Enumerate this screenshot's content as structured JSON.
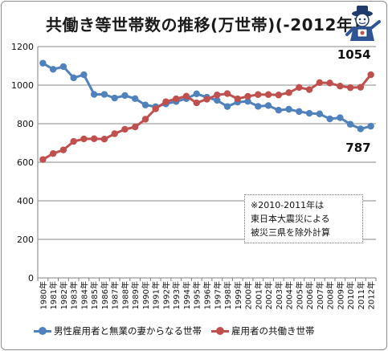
{
  "title": "共働き等世帯数の推移(万世帯)(-2012年)",
  "note_lines": [
    "※2010-2011年は",
    "東日本大震災による",
    "被災三県を除外計算"
  ],
  "chart_data": {
    "type": "line",
    "ylim": [
      0,
      1200
    ],
    "yticks": [
      0,
      200,
      400,
      600,
      800,
      1000,
      1200
    ],
    "ytick_labels": [
      "0",
      "200",
      "400",
      "600",
      "800",
      "1000",
      "1200"
    ],
    "grid": true,
    "legend_position": "bottom",
    "tick_suffix": "年",
    "categories": [
      "1980",
      "1981",
      "1982",
      "1983",
      "1984",
      "1985",
      "1986",
      "1987",
      "1988",
      "1989",
      "1990",
      "1991",
      "1992",
      "1993",
      "1994",
      "1995",
      "1996",
      "1997",
      "1998",
      "1999",
      "2000",
      "2001",
      "2002",
      "2003",
      "2004",
      "2005",
      "2006",
      "2007",
      "2008",
      "2009",
      "2010",
      "2011",
      "2012"
    ],
    "series": [
      {
        "name": "男性雇用者と無業の妻からなる世帯",
        "color": "#4f81bd",
        "values": [
          1114,
          1082,
          1096,
          1038,
          1054,
          952,
          952,
          933,
          946,
          930,
          897,
          888,
          903,
          915,
          930,
          955,
          937,
          921,
          889,
          912,
          916,
          890,
          894,
          870,
          875,
          863,
          854,
          851,
          825,
          831,
          797,
          773,
          787
        ],
        "end_label": "787"
      },
      {
        "name": "雇用者の共働き世帯",
        "color": "#c0504d",
        "values": [
          614,
          645,
          664,
          708,
          721,
          722,
          720,
          748,
          771,
          783,
          823,
          877,
          914,
          929,
          943,
          908,
          927,
          949,
          956,
          929,
          942,
          951,
          951,
          949,
          961,
          988,
          977,
          1013,
          1011,
          995,
          987,
          989,
          1054
        ],
        "end_label": "1054"
      }
    ]
  }
}
